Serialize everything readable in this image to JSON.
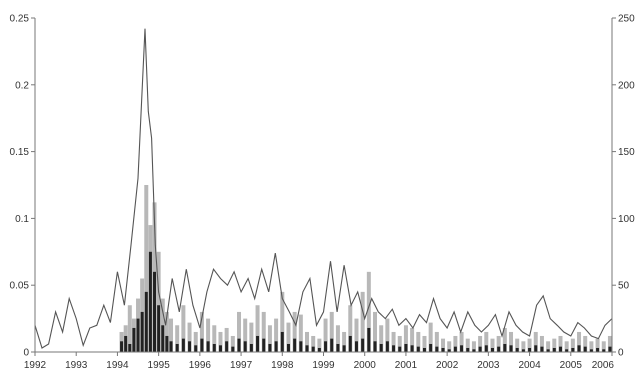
{
  "chart_data": {
    "type": "bar",
    "x_ticks": [
      "1992",
      "1993",
      "1994",
      "1995",
      "1996",
      "1997",
      "1998",
      "1999",
      "2000",
      "2001",
      "2002",
      "2003",
      "2004",
      "2005",
      "2006"
    ],
    "y_left_ticks": [
      "0",
      "0.05",
      "0.1",
      "0.15",
      "0.2",
      "0.25"
    ],
    "y_right_ticks": [
      "0",
      "50",
      "100",
      "150",
      "200",
      "250"
    ],
    "ylim_left": [
      0,
      0.25
    ],
    "ylim_right": [
      0,
      250
    ],
    "xlim": [
      1992,
      2006
    ],
    "grid": false,
    "colors": {
      "line": "#555555",
      "bar_light": "#b8b8b8",
      "bar_dark": "#222222",
      "axis": "#777777"
    },
    "series": [
      {
        "type": "line",
        "axis": "left",
        "x": [
          1992.0,
          1992.17,
          1992.33,
          1992.5,
          1992.67,
          1992.83,
          1993.0,
          1993.17,
          1993.33,
          1993.5,
          1993.67,
          1993.83,
          1994.0,
          1994.17,
          1994.33,
          1994.5,
          1994.67,
          1994.75,
          1994.83,
          1994.92,
          1995.0,
          1995.17,
          1995.33,
          1995.5,
          1995.67,
          1995.83,
          1996.0,
          1996.17,
          1996.33,
          1996.5,
          1996.67,
          1996.83,
          1997.0,
          1997.17,
          1997.33,
          1997.5,
          1997.67,
          1997.83,
          1998.0,
          1998.17,
          1998.33,
          1998.5,
          1998.67,
          1998.83,
          1999.0,
          1999.17,
          1999.33,
          1999.5,
          1999.67,
          1999.83,
          2000.0,
          2000.17,
          2000.33,
          2000.5,
          2000.67,
          2000.83,
          2001.0,
          2001.17,
          2001.33,
          2001.5,
          2001.67,
          2001.83,
          2002.0,
          2002.17,
          2002.33,
          2002.5,
          2002.67,
          2002.83,
          2003.0,
          2003.17,
          2003.33,
          2003.5,
          2003.67,
          2003.83,
          2004.0,
          2004.17,
          2004.33,
          2004.5,
          2004.67,
          2004.83,
          2005.0,
          2005.17,
          2005.33,
          2005.5,
          2005.67,
          2005.83,
          2006.0
        ],
        "y": [
          0.02,
          0.003,
          0.006,
          0.03,
          0.015,
          0.04,
          0.025,
          0.005,
          0.018,
          0.02,
          0.035,
          0.022,
          0.06,
          0.035,
          0.08,
          0.13,
          0.242,
          0.18,
          0.16,
          0.08,
          0.045,
          0.02,
          0.055,
          0.03,
          0.062,
          0.035,
          0.018,
          0.045,
          0.062,
          0.055,
          0.05,
          0.06,
          0.045,
          0.055,
          0.04,
          0.062,
          0.045,
          0.074,
          0.04,
          0.03,
          0.02,
          0.045,
          0.055,
          0.02,
          0.03,
          0.068,
          0.03,
          0.065,
          0.035,
          0.045,
          0.025,
          0.04,
          0.03,
          0.025,
          0.032,
          0.02,
          0.025,
          0.018,
          0.028,
          0.022,
          0.04,
          0.025,
          0.018,
          0.03,
          0.015,
          0.03,
          0.02,
          0.015,
          0.02,
          0.028,
          0.012,
          0.03,
          0.02,
          0.015,
          0.012,
          0.035,
          0.042,
          0.025,
          0.02,
          0.015,
          0.012,
          0.022,
          0.018,
          0.012,
          0.01,
          0.02,
          0.025
        ]
      },
      {
        "type": "bar",
        "axis": "right",
        "name": "",
        "x": [
          1994.1,
          1994.2,
          1994.3,
          1994.4,
          1994.5,
          1994.6,
          1994.7,
          1994.8,
          1994.9,
          1995.0,
          1995.1,
          1995.2,
          1995.3,
          1995.45,
          1995.6,
          1995.75,
          1995.9,
          1996.05,
          1996.2,
          1996.35,
          1996.5,
          1996.65,
          1996.8,
          1996.95,
          1997.1,
          1997.25,
          1997.4,
          1997.55,
          1997.7,
          1997.85,
          1998.0,
          1998.15,
          1998.3,
          1998.45,
          1998.6,
          1998.75,
          1998.9,
          1999.05,
          1999.2,
          1999.35,
          1999.5,
          1999.65,
          1999.8,
          1999.95,
          2000.1,
          2000.25,
          2000.4,
          2000.55,
          2000.7,
          2000.85,
          2001.0,
          2001.15,
          2001.3,
          2001.45,
          2001.6,
          2001.75,
          2001.9,
          2002.05,
          2002.2,
          2002.35,
          2002.5,
          2002.65,
          2002.8,
          2002.95,
          2003.1,
          2003.25,
          2003.4,
          2003.55,
          2003.7,
          2003.85,
          2004.0,
          2004.15,
          2004.3,
          2004.45,
          2004.6,
          2004.75,
          2004.9,
          2005.05,
          2005.2,
          2005.35,
          2005.5,
          2005.65,
          2005.8,
          2005.95
        ],
        "values": [
          15,
          20,
          35,
          25,
          40,
          55,
          125,
          95,
          112,
          75,
          40,
          30,
          25,
          20,
          35,
          22,
          15,
          30,
          25,
          20,
          15,
          18,
          12,
          30,
          25,
          22,
          35,
          30,
          20,
          25,
          45,
          22,
          30,
          28,
          15,
          12,
          10,
          25,
          30,
          20,
          15,
          35,
          25,
          45,
          60,
          30,
          20,
          25,
          15,
          12,
          20,
          18,
          15,
          12,
          22,
          15,
          10,
          8,
          12,
          15,
          10,
          8,
          12,
          15,
          10,
          12,
          18,
          15,
          10,
          8,
          10,
          15,
          12,
          8,
          10,
          12,
          8,
          10,
          15,
          12,
          8,
          10,
          8,
          12
        ]
      },
      {
        "type": "bar",
        "axis": "right",
        "name": "",
        "x": [
          1994.1,
          1994.2,
          1994.3,
          1994.4,
          1994.5,
          1994.6,
          1994.7,
          1994.8,
          1994.9,
          1995.0,
          1995.1,
          1995.2,
          1995.3,
          1995.45,
          1995.6,
          1995.75,
          1995.9,
          1996.05,
          1996.2,
          1996.35,
          1996.5,
          1996.65,
          1996.8,
          1996.95,
          1997.1,
          1997.25,
          1997.4,
          1997.55,
          1997.7,
          1997.85,
          1998.0,
          1998.15,
          1998.3,
          1998.45,
          1998.6,
          1998.75,
          1998.9,
          1999.05,
          1999.2,
          1999.35,
          1999.5,
          1999.65,
          1999.8,
          1999.95,
          2000.1,
          2000.25,
          2000.4,
          2000.55,
          2000.7,
          2000.85,
          2001.0,
          2001.15,
          2001.3,
          2001.45,
          2001.6,
          2001.75,
          2001.9,
          2002.05,
          2002.2,
          2002.35,
          2002.5,
          2002.65,
          2002.8,
          2002.95,
          2003.1,
          2003.25,
          2003.4,
          2003.55,
          2003.7,
          2003.85,
          2004.0,
          2004.15,
          2004.3,
          2004.45,
          2004.6,
          2004.75,
          2004.9,
          2005.05,
          2005.2,
          2005.35,
          2005.5,
          2005.65,
          2005.8,
          2005.95
        ],
        "values": [
          8,
          12,
          6,
          18,
          25,
          30,
          45,
          75,
          60,
          35,
          20,
          12,
          8,
          6,
          10,
          8,
          5,
          10,
          8,
          6,
          5,
          8,
          4,
          10,
          8,
          6,
          12,
          10,
          6,
          8,
          15,
          6,
          10,
          8,
          5,
          4,
          3,
          8,
          10,
          6,
          5,
          12,
          8,
          10,
          18,
          8,
          6,
          8,
          5,
          4,
          6,
          5,
          4,
          3,
          6,
          4,
          3,
          2,
          4,
          5,
          3,
          2,
          4,
          5,
          3,
          4,
          6,
          5,
          3,
          2,
          3,
          5,
          4,
          2,
          3,
          4,
          2,
          3,
          5,
          4,
          2,
          3,
          2,
          4
        ]
      }
    ]
  }
}
